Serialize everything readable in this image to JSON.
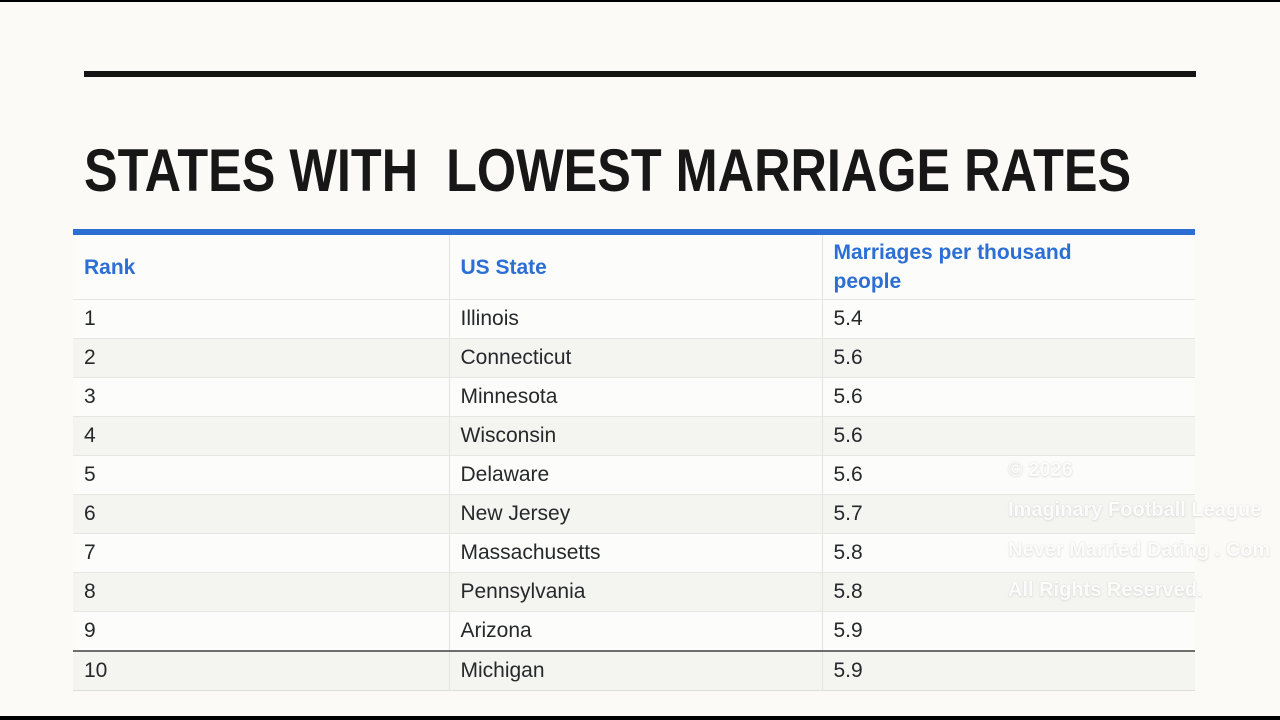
{
  "slide": {
    "title": "STATES WITH  LOWEST MARRIAGE RATES"
  },
  "chart_data": {
    "type": "table",
    "title": "States with lowest marriage rates",
    "columns": [
      "Rank",
      "US State",
      "Marriages per thousand people"
    ],
    "rows": [
      {
        "rank": "1",
        "state": "Illinois",
        "value": "5.4"
      },
      {
        "rank": "2",
        "state": "Connecticut",
        "value": "5.6"
      },
      {
        "rank": "3",
        "state": "Minnesota",
        "value": "5.6"
      },
      {
        "rank": "4",
        "state": "Wisconsin",
        "value": "5.6"
      },
      {
        "rank": "5",
        "state": "Delaware",
        "value": "5.6"
      },
      {
        "rank": "6",
        "state": "New Jersey",
        "value": "5.7"
      },
      {
        "rank": "7",
        "state": "Massachusetts",
        "value": "5.8"
      },
      {
        "rank": "8",
        "state": "Pennsylvania",
        "value": "5.8"
      },
      {
        "rank": "9",
        "state": "Arizona",
        "value": "5.9"
      },
      {
        "rank": "10",
        "state": "Michigan",
        "value": "5.9"
      }
    ]
  },
  "watermark": {
    "lines": [
      "© 2026",
      "Imaginary Football League",
      "Never Married Dating . Com",
      "All Rights Reserved."
    ]
  },
  "colors": {
    "accent_blue": "#2b6fd4",
    "title_black": "#171717",
    "row_alt_gray": "#f4f4f1",
    "background": "#fbfaf7"
  }
}
